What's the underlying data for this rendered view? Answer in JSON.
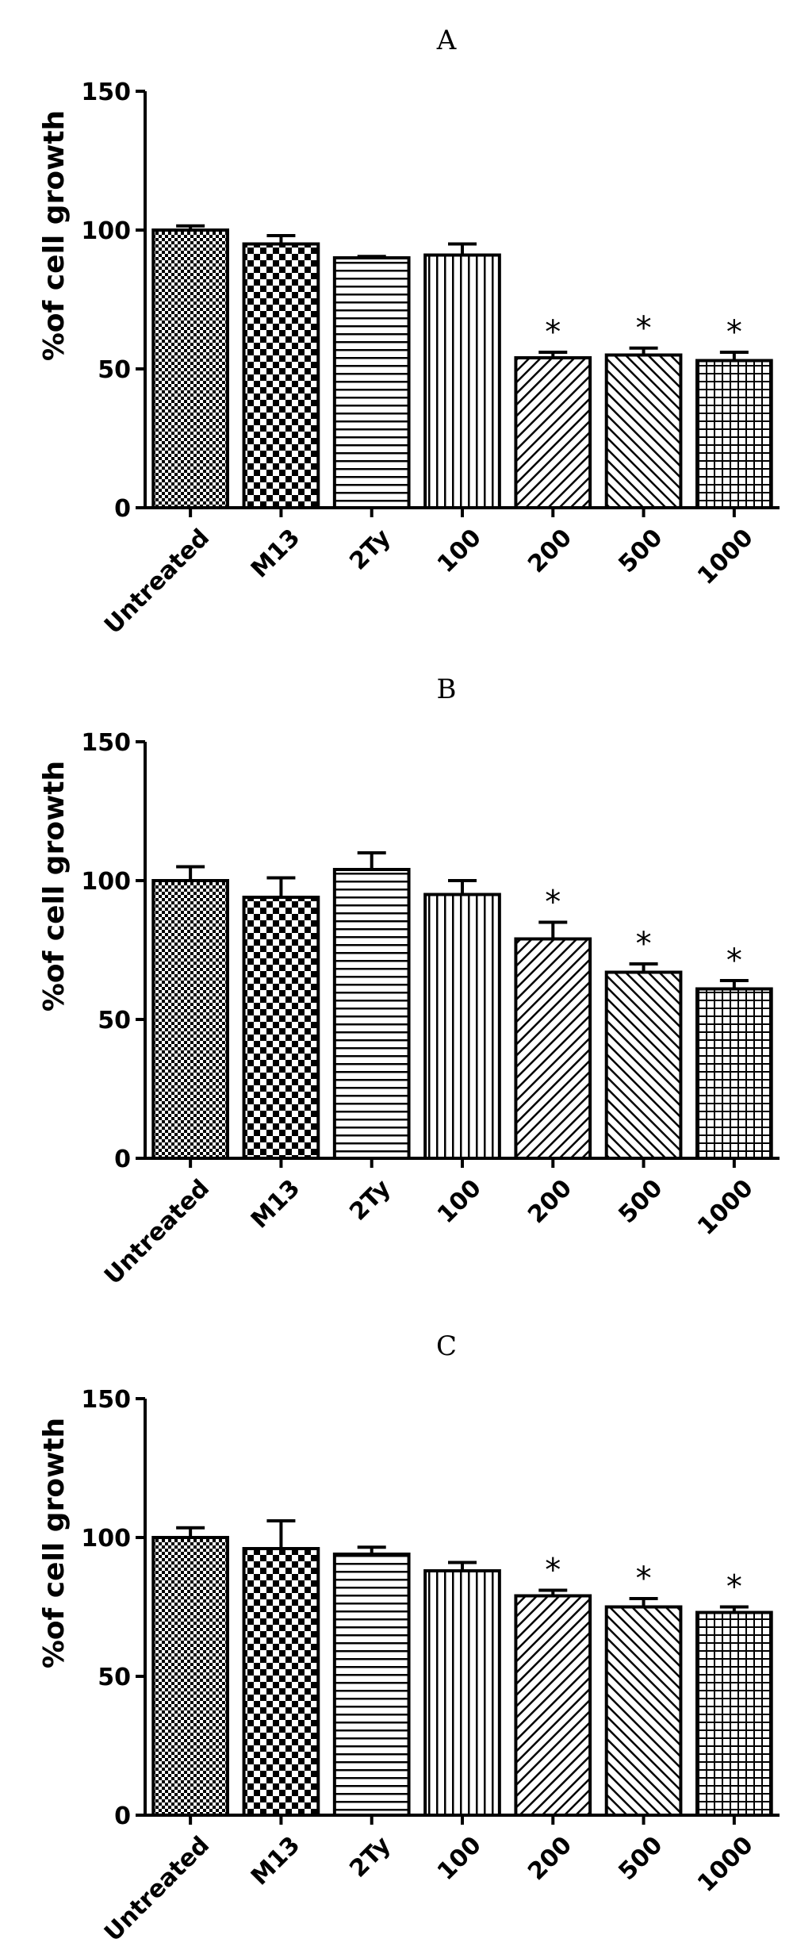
{
  "colors": {
    "ink": "#000000",
    "background": "#ffffff"
  },
  "chart_data": [
    {
      "type": "bar",
      "title": "A",
      "ylabel": "%of cell growth",
      "xlabel": "",
      "ylim": [
        0,
        150
      ],
      "yticks": [
        0,
        50,
        100,
        150
      ],
      "categories": [
        "Untreated",
        "M13",
        "2Ty",
        "100",
        "200",
        "500",
        "1000"
      ],
      "values": [
        100,
        95,
        90,
        91,
        54,
        55,
        53
      ],
      "errors": [
        1.5,
        3,
        0.5,
        4,
        2,
        2.5,
        3
      ],
      "significance": [
        "",
        "",
        "",
        "",
        "*",
        "*",
        "*"
      ],
      "patterns": [
        "fine-check",
        "check",
        "horizontal",
        "vertical",
        "diagonal-up",
        "diagonal-down",
        "grid"
      ],
      "grid": false,
      "legend": "none"
    },
    {
      "type": "bar",
      "title": "B",
      "ylabel": "%of cell growth",
      "xlabel": "",
      "ylim": [
        0,
        150
      ],
      "yticks": [
        0,
        50,
        100,
        150
      ],
      "categories": [
        "Untreated",
        "M13",
        "2Ty",
        "100",
        "200",
        "500",
        "1000"
      ],
      "values": [
        100,
        94,
        104,
        95,
        79,
        67,
        61
      ],
      "errors": [
        5,
        7,
        6,
        5,
        6,
        3,
        3
      ],
      "significance": [
        "",
        "",
        "",
        "",
        "*",
        "*",
        "*"
      ],
      "patterns": [
        "fine-check",
        "check",
        "horizontal",
        "vertical",
        "diagonal-up",
        "diagonal-down",
        "grid"
      ],
      "grid": false,
      "legend": "none"
    },
    {
      "type": "bar",
      "title": "C",
      "ylabel": "%of cell growth",
      "xlabel": "",
      "ylim": [
        0,
        150
      ],
      "yticks": [
        0,
        50,
        100,
        150
      ],
      "categories": [
        "Untreated",
        "M13",
        "2Ty",
        "100",
        "200",
        "500",
        "1000"
      ],
      "values": [
        100,
        96,
        94,
        88,
        79,
        75,
        73
      ],
      "errors": [
        3.5,
        10,
        2.5,
        3,
        2,
        3,
        2
      ],
      "significance": [
        "",
        "",
        "",
        "",
        "*",
        "*",
        "*"
      ],
      "patterns": [
        "fine-check",
        "check",
        "horizontal",
        "vertical",
        "diagonal-up",
        "diagonal-down",
        "grid"
      ],
      "grid": false,
      "legend": "none"
    }
  ]
}
